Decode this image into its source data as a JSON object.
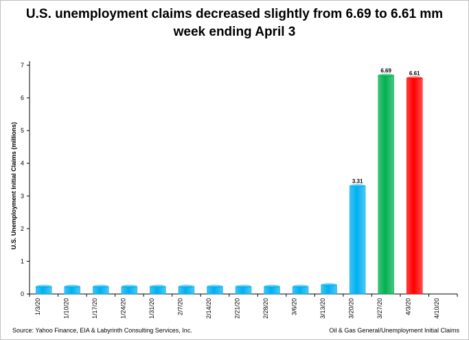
{
  "title": {
    "line1": "U.S. unemployment claims decreased slightly from 6.69 to 6.61 mm",
    "line2": "week ending April 3"
  },
  "footer": {
    "source": "Source: Yahoo Finance, EIA &  Labyrinth Consulting Services, Inc.",
    "credit": "Oil & Gas General/Unemployment  Initial Claims"
  },
  "colors": {
    "blue": "#00b0f0",
    "green": "#00b050",
    "red": "#ff0000",
    "axis": "#000000"
  },
  "chart_data": {
    "type": "bar",
    "ylabel": "U.S. Unemployment Initial Claims (millions)",
    "xlabel": "",
    "ylim": [
      0,
      7
    ],
    "yticks": [
      0,
      1,
      2,
      3,
      4,
      5,
      6,
      7
    ],
    "grid": false,
    "legend": "none",
    "categories": [
      "1/3/20",
      "1/10/20",
      "1/17/20",
      "1/24/20",
      "1/31/20",
      "2/7/20",
      "2/14/20",
      "2/21/20",
      "2/28/20",
      "3/6/20",
      "3/13/20",
      "3/20/20",
      "3/27/20",
      "4/3/20",
      "4/10/20"
    ],
    "values": [
      0.23,
      0.23,
      0.23,
      0.23,
      0.23,
      0.23,
      0.23,
      0.23,
      0.23,
      0.23,
      0.28,
      3.31,
      6.69,
      6.61,
      null
    ],
    "bar_colors": [
      "blue",
      "blue",
      "blue",
      "blue",
      "blue",
      "blue",
      "blue",
      "blue",
      "blue",
      "blue",
      "blue",
      "blue",
      "green",
      "red",
      "blue"
    ],
    "data_labels": [
      "",
      "",
      "",
      "",
      "",
      "",
      "",
      "",
      "",
      "",
      "",
      "3.31",
      "6.69",
      "6.61",
      ""
    ]
  }
}
